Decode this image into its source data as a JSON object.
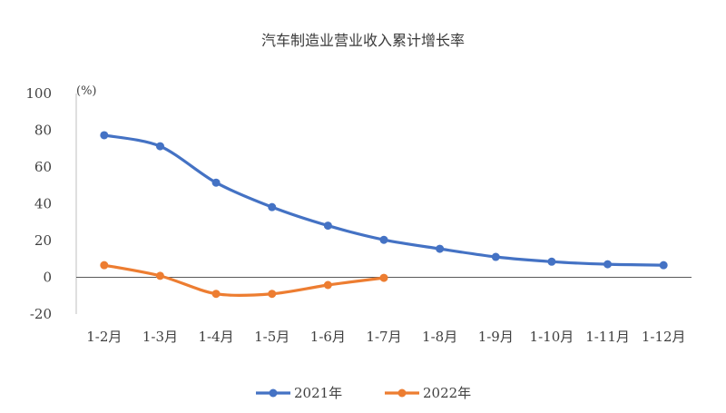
{
  "chart_data": {
    "type": "line",
    "title": "汽车制造业营业收入累计增长率",
    "unit_label": "(%)",
    "categories": [
      "1-2月",
      "1-3月",
      "1-4月",
      "1-5月",
      "1-6月",
      "1-7月",
      "1-8月",
      "1-9月",
      "1-10月",
      "1-11月",
      "1-12月"
    ],
    "ylim": [
      -20,
      100
    ],
    "yticks": [
      100,
      80,
      60,
      40,
      20,
      0,
      -20
    ],
    "grid": false,
    "legend_position": "bottom",
    "series": [
      {
        "name": "2021年",
        "color": "#4472c4",
        "values": [
          77.3,
          71.3,
          51.5,
          38.2,
          28.1,
          20.4,
          15.5,
          11.1,
          8.5,
          7.1,
          6.6
        ]
      },
      {
        "name": "2022年",
        "color": "#ed7d31",
        "values": [
          6.6,
          0.8,
          -9.0,
          -9.0,
          -4.2,
          -0.3,
          null,
          null,
          null,
          null,
          null
        ]
      }
    ]
  }
}
